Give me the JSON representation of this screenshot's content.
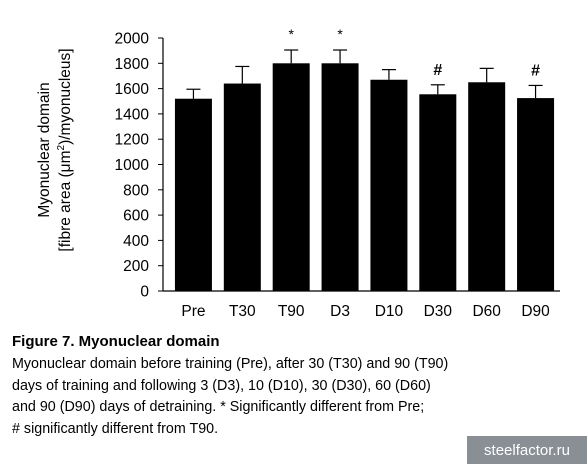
{
  "chart_data": {
    "type": "bar",
    "categories": [
      "Pre",
      "T30",
      "T90",
      "D3",
      "D10",
      "D30",
      "D60",
      "D90"
    ],
    "values": [
      1520,
      1640,
      1800,
      1800,
      1670,
      1555,
      1650,
      1525
    ],
    "errors": [
      75,
      135,
      105,
      105,
      80,
      75,
      110,
      100
    ],
    "significance": [
      "",
      "",
      "*",
      "*",
      "",
      "#",
      "",
      "#"
    ],
    "y_ticks": [
      "0",
      "200",
      "400",
      "600",
      "800",
      "1000",
      "1200",
      "1400",
      "1600",
      "1800",
      "2000"
    ],
    "ylim": [
      0,
      2000
    ],
    "ylabel_line1": "Myonuclear domain",
    "ylabel_line2_before": "[fibre area (μm",
    "ylabel_line2_sup": "2",
    "ylabel_line2_after": ")/myonucleus]",
    "bar_color": "#000000",
    "grid": false
  },
  "caption": {
    "title": "Figure 7.  Myonuclear domain",
    "lines": [
      "Myonuclear domain before training (Pre), after 30 (T30) and 90 (T90)",
      "days of training and following 3 (D3), 10 (D10), 30 (D30), 60 (D60)",
      "and 90 (D90) days of detraining. * Significantly different from Pre;",
      "# significantly different from T90."
    ]
  },
  "watermark": "steelfactor.ru"
}
